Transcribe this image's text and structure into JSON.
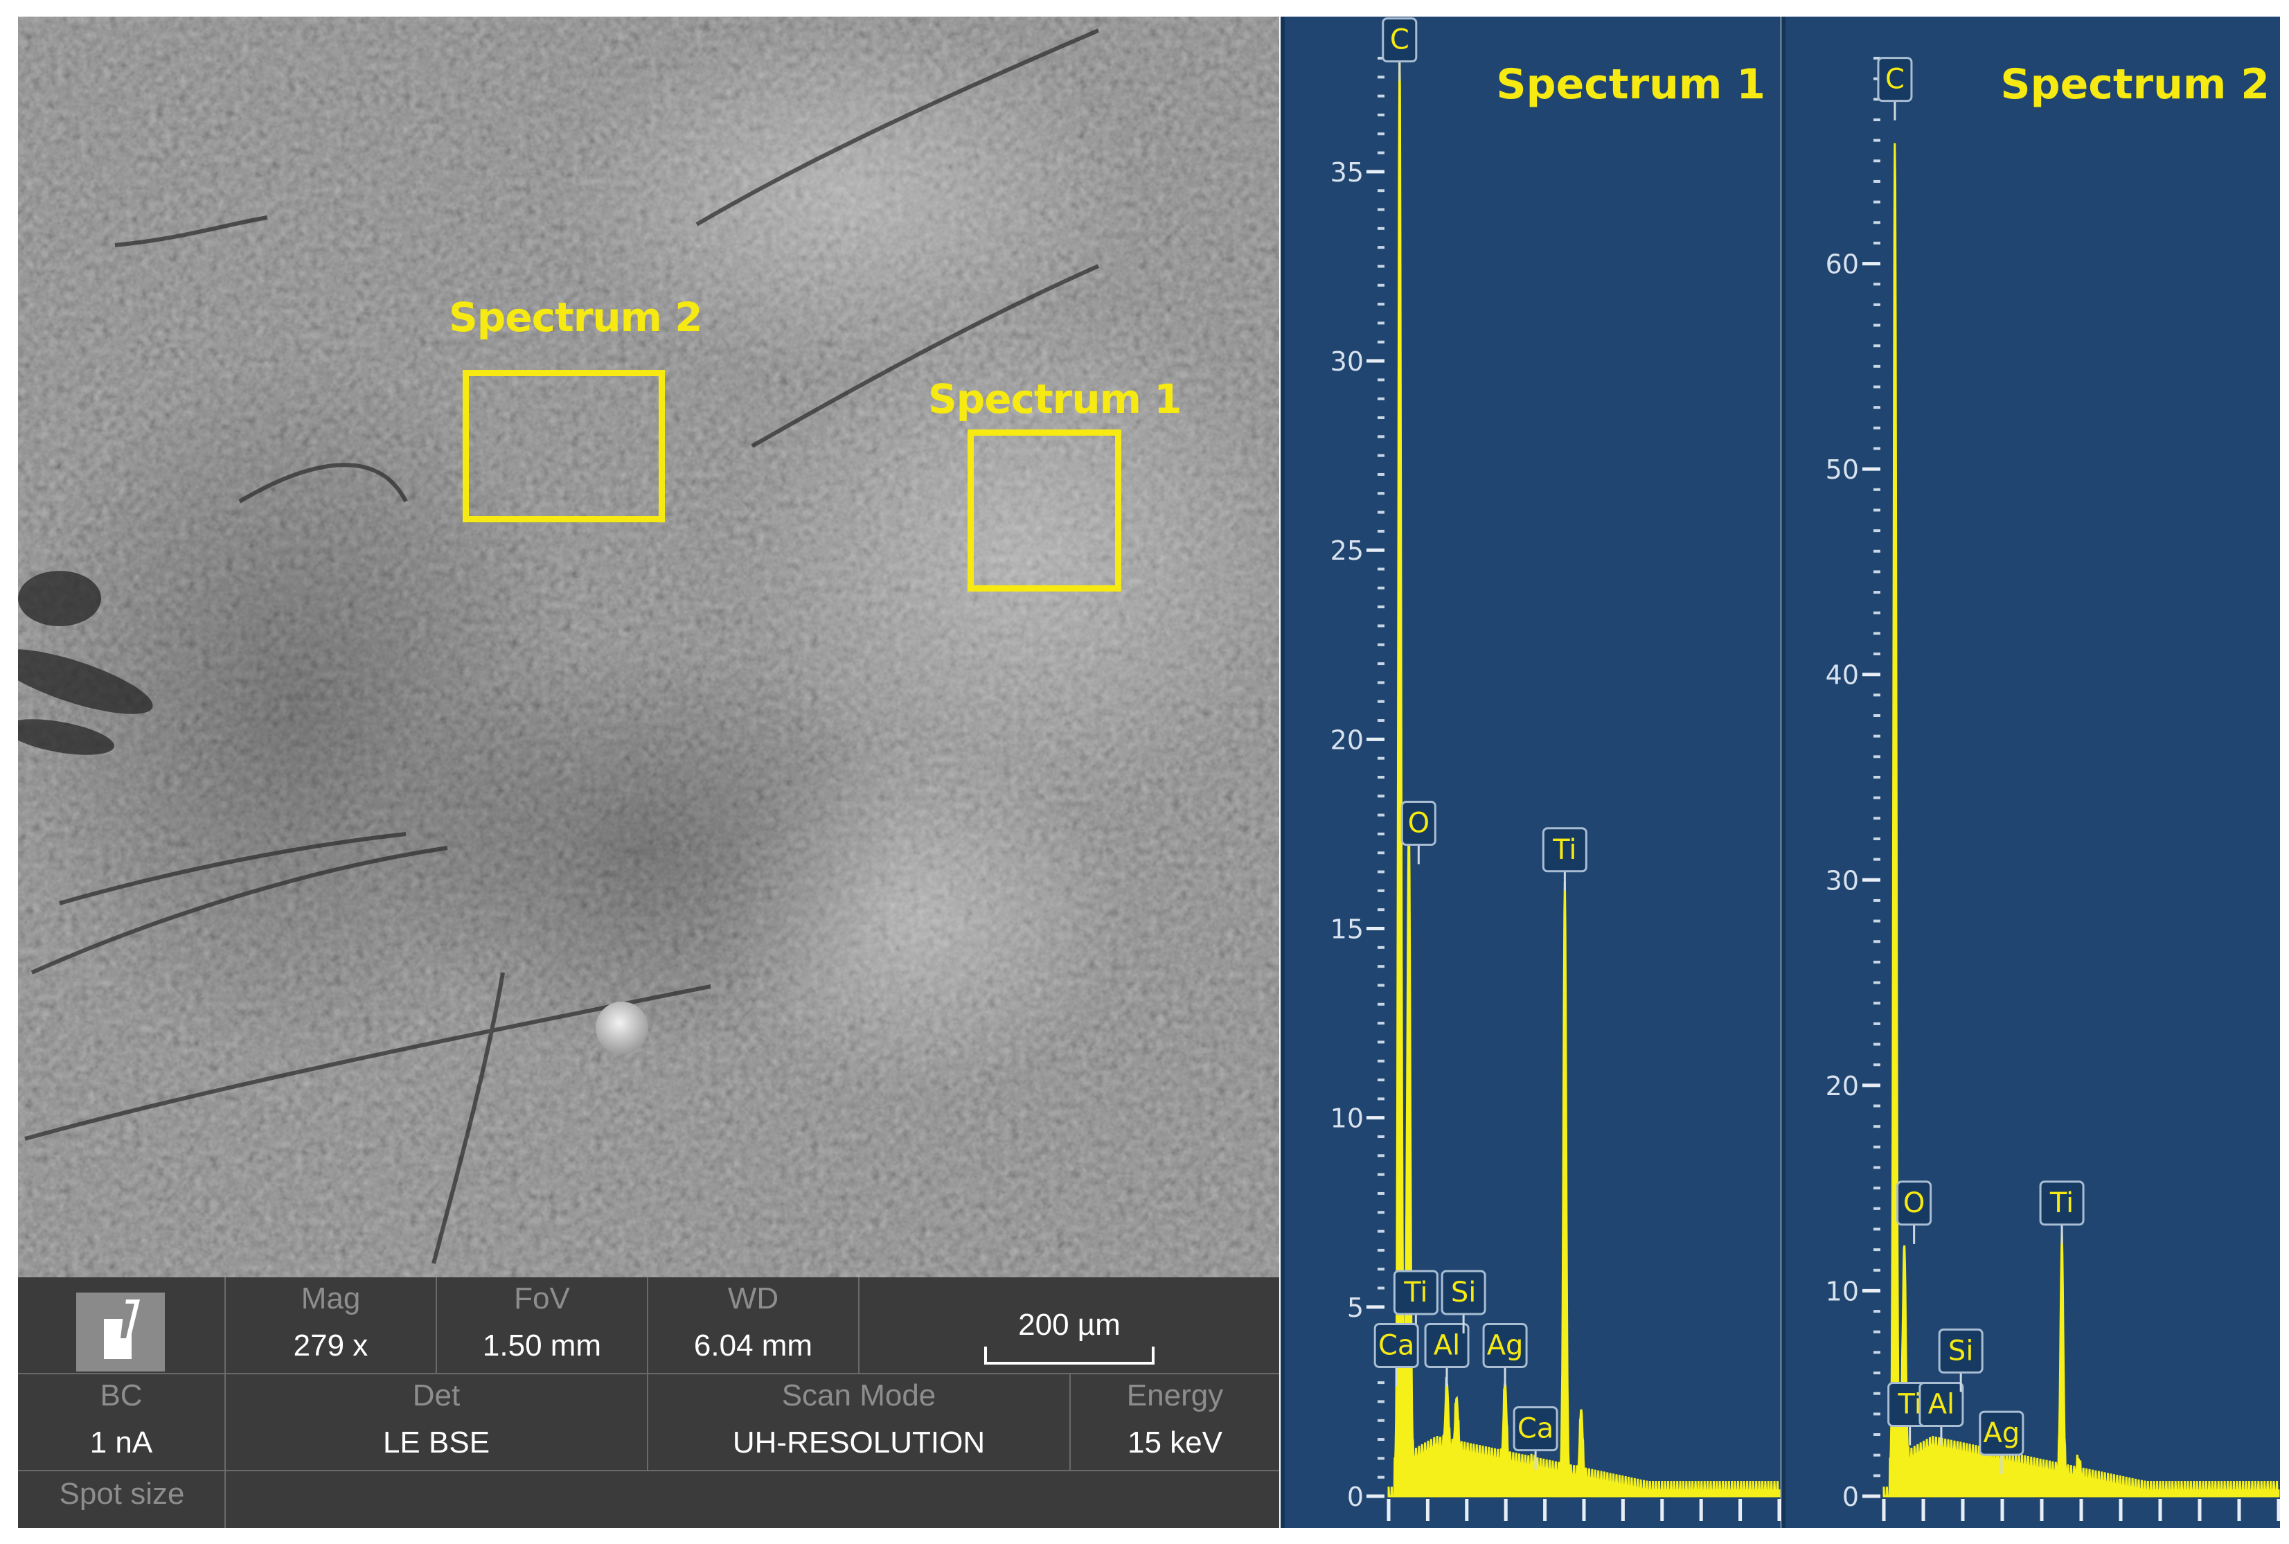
{
  "sem_image": {
    "labels": {
      "spectrum2": "Spectrum 2",
      "spectrum1": "Spectrum 1"
    }
  },
  "info_bar": {
    "mag_label": "Mag",
    "mag_value": "279 x",
    "fov_label": "FoV",
    "fov_value": "1.50 mm",
    "wd_label": "WD",
    "wd_value": "6.04 mm",
    "scale_value": "200 µm",
    "bc_label": "BC",
    "bc_value": "1 nA",
    "det_label": "Det",
    "det_value": "LE BSE",
    "scan_mode_label": "Scan Mode",
    "scan_mode_value": "UH-RESOLUTION",
    "energy_label": "Energy",
    "energy_value": "15 keV",
    "spot_size_label": "Spot size"
  },
  "colors": {
    "chart_bg": "#1f4570",
    "trace": "#f6f01a",
    "label_text": "#f6ea12",
    "sem_gray": "#6f6f6f",
    "info_bar": "#3b3b3b"
  },
  "chart_data": [
    {
      "type": "line",
      "title": "Spectrum 1",
      "ylim": [
        0,
        38
      ],
      "y_ticks": [
        0,
        5,
        10,
        15,
        20,
        25,
        30,
        35
      ],
      "x_range_keV": [
        0,
        10
      ],
      "peaks": [
        {
          "element": "C",
          "x": 0.28,
          "y": 37.5
        },
        {
          "element": "O",
          "x": 0.52,
          "y": 17.3
        },
        {
          "element": "Ti",
          "x": 0.45,
          "y": 4.6
        },
        {
          "element": "Ca",
          "x": 0.34,
          "y": 3.6
        },
        {
          "element": "Al",
          "x": 1.49,
          "y": 3.0
        },
        {
          "element": "Si",
          "x": 1.74,
          "y": 2.6
        },
        {
          "element": "Ag",
          "x": 2.98,
          "y": 3.0
        },
        {
          "element": "Ca",
          "x": 3.69,
          "y": 0.9
        },
        {
          "element": "Ti",
          "x": 4.51,
          "y": 16.0
        },
        {
          "element": "",
          "x": 4.93,
          "y": 2.3
        }
      ],
      "peak_labels": [
        {
          "text": "C",
          "y": 38.5
        },
        {
          "text": "O",
          "y": 17.8
        },
        {
          "text": "Ti",
          "y": 5.4
        },
        {
          "text": "Ca",
          "y": 4.0
        },
        {
          "text": "Al",
          "y": 4.0
        },
        {
          "text": "Si",
          "y": 5.4
        },
        {
          "text": "Ag",
          "y": 4.0
        },
        {
          "text": "Ca",
          "y": 1.8
        },
        {
          "text": "Ti",
          "y": 17.1
        }
      ]
    },
    {
      "type": "line",
      "title": "Spectrum 2",
      "ylim": [
        0,
        70
      ],
      "y_ticks": [
        0,
        10,
        20,
        30,
        40,
        50,
        60
      ],
      "x_range_keV": [
        0,
        10
      ],
      "peaks": [
        {
          "element": "C",
          "x": 0.28,
          "y": 66.0
        },
        {
          "element": "O",
          "x": 0.52,
          "y": 12.0
        },
        {
          "element": "Ti",
          "x": 0.45,
          "y": 3.5
        },
        {
          "element": "Al",
          "x": 1.49,
          "y": 2.3
        },
        {
          "element": "Si",
          "x": 1.74,
          "y": 1.8
        },
        {
          "element": "Ag",
          "x": 2.98,
          "y": 1.0
        },
        {
          "element": "Ti",
          "x": 4.51,
          "y": 12.4
        },
        {
          "element": "",
          "x": 4.93,
          "y": 1.8
        }
      ],
      "peak_labels": [
        {
          "text": "C",
          "y": 69.0
        },
        {
          "text": "O",
          "y": 14.3
        },
        {
          "text": "Ti",
          "y": 4.5
        },
        {
          "text": "Al",
          "y": 4.5
        },
        {
          "text": "Si",
          "y": 7.1
        },
        {
          "text": "Ag",
          "y": 3.1
        },
        {
          "text": "Ti",
          "y": 14.3
        }
      ]
    }
  ]
}
